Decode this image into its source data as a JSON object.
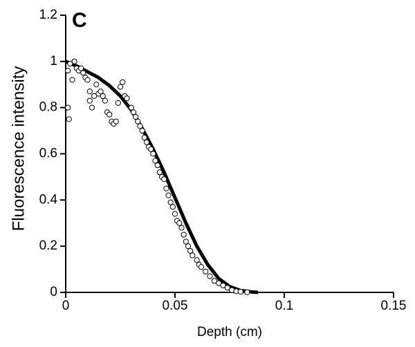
{
  "chart_data": {
    "type": "scatter",
    "panel_label": "C",
    "x_label": "Depth (cm)",
    "y_label": "Fluorescence intensity",
    "xlim": [
      0,
      0.15
    ],
    "xticks": [
      0,
      0.05,
      0.1,
      0.15
    ],
    "ylim": [
      0,
      1.2
    ],
    "yticks": [
      0,
      0.2,
      0.4,
      0.6,
      0.8,
      1,
      1.2
    ],
    "series": [
      {
        "type": "line",
        "color": "#000000",
        "x": [
          0,
          0.005,
          0.01,
          0.015,
          0.02,
          0.025,
          0.03,
          0.035,
          0.04,
          0.045,
          0.05,
          0.055,
          0.06,
          0.065,
          0.07,
          0.075,
          0.08,
          0.085,
          0.088
        ],
        "values": [
          1,
          0.98,
          0.955,
          0.93,
          0.895,
          0.85,
          0.79,
          0.71,
          0.62,
          0.52,
          0.41,
          0.3,
          0.2,
          0.12,
          0.06,
          0.025,
          0.008,
          0.002,
          0
        ]
      },
      {
        "type": "scatter",
        "color": "#ffffff",
        "x": [
          0.001,
          0.0015,
          0.001,
          0.002,
          0.003,
          0.004,
          0.005,
          0.006,
          0.007,
          0.008,
          0.009,
          0.01,
          0.011,
          0.011,
          0.012,
          0.013,
          0.014,
          0.015,
          0.016,
          0.017,
          0.018,
          0.019,
          0.02,
          0.021,
          0.022,
          0.023,
          0.024,
          0.025,
          0.026,
          0.027,
          0.028,
          0.03,
          0.031,
          0.032,
          0.033,
          0.034,
          0.035,
          0.036,
          0.037,
          0.038,
          0.039,
          0.04,
          0.041,
          0.042,
          0.043,
          0.044,
          0.045,
          0.046,
          0.047,
          0.048,
          0.049,
          0.05,
          0.051,
          0.052,
          0.053,
          0.054,
          0.055,
          0.056,
          0.057,
          0.058,
          0.06,
          0.061,
          0.062,
          0.064,
          0.066,
          0.068,
          0.07,
          0.072,
          0.074,
          0.076,
          0.078,
          0.08,
          0.083
        ],
        "values": [
          0.8,
          0.75,
          0.96,
          0.99,
          0.92,
          1.0,
          0.97,
          0.96,
          0.97,
          0.95,
          0.93,
          0.92,
          0.87,
          0.83,
          0.8,
          0.85,
          0.9,
          0.86,
          0.87,
          0.85,
          0.83,
          0.78,
          0.77,
          0.74,
          0.73,
          0.74,
          0.82,
          0.89,
          0.91,
          0.85,
          0.84,
          0.8,
          0.78,
          0.76,
          0.74,
          0.72,
          0.7,
          0.67,
          0.65,
          0.63,
          0.62,
          0.6,
          0.57,
          0.55,
          0.52,
          0.5,
          0.49,
          0.45,
          0.42,
          0.39,
          0.37,
          0.34,
          0.31,
          0.3,
          0.28,
          0.25,
          0.22,
          0.2,
          0.18,
          0.16,
          0.14,
          0.12,
          0.11,
          0.09,
          0.07,
          0.05,
          0.04,
          0.03,
          0.02,
          0.01,
          0.005,
          0.003,
          0.001
        ]
      }
    ]
  }
}
